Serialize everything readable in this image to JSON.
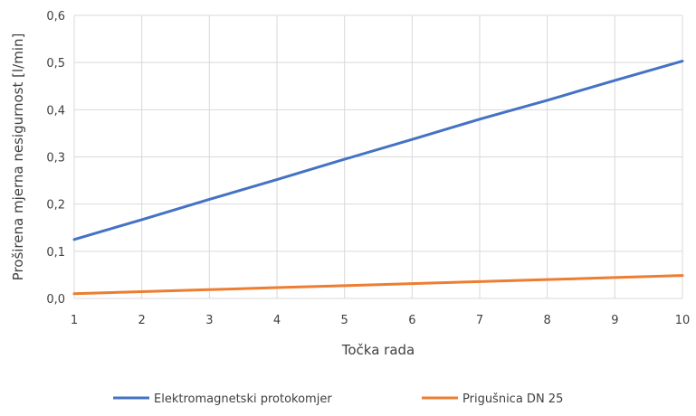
{
  "chart_data": {
    "type": "line",
    "title": "",
    "xlabel": "Točka rada",
    "ylabel": "Proširena mjerna nesigurnost   [l/min]",
    "x": [
      1,
      2,
      3,
      4,
      5,
      6,
      7,
      8,
      9,
      10
    ],
    "xlim": [
      1,
      10
    ],
    "ylim": [
      0,
      0.6
    ],
    "y_ticks": [
      0,
      0.1,
      0.2,
      0.3,
      0.4,
      0.5,
      0.6
    ],
    "y_tick_labels": [
      "0,0",
      "0,1",
      "0,2",
      "0,3",
      "0,4",
      "0,5",
      "0,6"
    ],
    "x_tick_labels": [
      "1",
      "2",
      "3",
      "4",
      "5",
      "6",
      "7",
      "8",
      "9",
      "10"
    ],
    "grid": true,
    "legend_position": "bottom",
    "series": [
      {
        "name": "Elektromagnetski protokomjer",
        "color": "#4472C4",
        "values": [
          0.125,
          0.167,
          0.21,
          0.252,
          0.295,
          0.337,
          0.38,
          0.42,
          0.462,
          0.503
        ]
      },
      {
        "name": "Prigušnica DN 25",
        "color": "#ED7D31",
        "values": [
          0.01,
          0.0143,
          0.0186,
          0.0229,
          0.0271,
          0.0314,
          0.0357,
          0.04,
          0.0443,
          0.0486
        ]
      }
    ]
  }
}
